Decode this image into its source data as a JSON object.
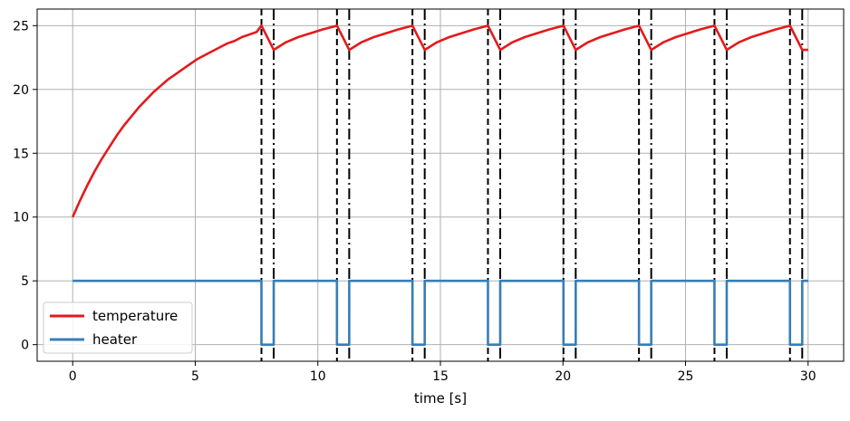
{
  "chart_data": {
    "type": "line",
    "title": "",
    "xlabel": "time [s]",
    "ylabel": "",
    "xlim": [
      -1.45,
      31.45
    ],
    "ylim": [
      -1.3,
      26.3
    ],
    "xticks": [
      0,
      5,
      10,
      15,
      20,
      25,
      30
    ],
    "yticks": [
      0,
      5,
      10,
      15,
      20,
      25
    ],
    "grid": true,
    "legend_position": "lower-left",
    "series": [
      {
        "name": "temperature",
        "color": "#e41a1c",
        "x": [
          0,
          0.3,
          0.6,
          0.9,
          1.2,
          1.5,
          1.8,
          2.1,
          2.4,
          2.7,
          3.0,
          3.3,
          3.6,
          3.9,
          4.2,
          4.5,
          4.8,
          5.1,
          5.4,
          5.7,
          6.0,
          6.3,
          6.6,
          6.9,
          7.2,
          7.5,
          7.7,
          8.2,
          8.7,
          9.2,
          9.7,
          10.2,
          10.78,
          11.28,
          11.78,
          12.28,
          12.78,
          13.28,
          13.86,
          14.36,
          14.86,
          15.36,
          15.86,
          16.36,
          16.94,
          17.44,
          17.94,
          18.44,
          18.94,
          19.44,
          20.02,
          20.52,
          21.02,
          21.52,
          22.02,
          22.52,
          23.1,
          23.6,
          24.1,
          24.6,
          25.1,
          25.6,
          26.18,
          26.68,
          27.18,
          27.68,
          28.18,
          28.68,
          29.26,
          29.76,
          30.0
        ],
        "y": [
          10.0,
          11.3,
          12.5,
          13.6,
          14.6,
          15.5,
          16.4,
          17.2,
          17.9,
          18.6,
          19.2,
          19.8,
          20.3,
          20.8,
          21.2,
          21.6,
          22.0,
          22.4,
          22.7,
          23.0,
          23.3,
          23.6,
          23.8,
          24.1,
          24.3,
          24.5,
          25.0,
          23.1,
          23.7,
          24.1,
          24.4,
          24.7,
          25.0,
          23.1,
          23.7,
          24.1,
          24.4,
          24.7,
          25.0,
          23.1,
          23.7,
          24.1,
          24.4,
          24.7,
          25.0,
          23.1,
          23.7,
          24.1,
          24.4,
          24.7,
          25.0,
          23.1,
          23.7,
          24.1,
          24.4,
          24.7,
          25.0,
          23.1,
          23.7,
          24.1,
          24.4,
          24.7,
          25.0,
          23.1,
          23.7,
          24.1,
          24.4,
          24.7,
          25.0,
          23.1,
          23.1
        ]
      },
      {
        "name": "heater",
        "color": "#377eb8",
        "x": [
          0,
          7.7,
          7.7,
          8.2,
          8.2,
          10.78,
          10.78,
          11.28,
          11.28,
          13.86,
          13.86,
          14.36,
          14.36,
          16.94,
          16.94,
          17.44,
          17.44,
          20.02,
          20.02,
          20.52,
          20.52,
          23.1,
          23.1,
          23.6,
          23.6,
          26.18,
          26.18,
          26.68,
          26.68,
          29.26,
          29.26,
          29.76,
          29.76,
          30.0
        ],
        "y": [
          5,
          5,
          0,
          0,
          5,
          5,
          0,
          0,
          5,
          5,
          0,
          0,
          5,
          5,
          0,
          0,
          5,
          5,
          0,
          0,
          5,
          5,
          0,
          0,
          5,
          5,
          0,
          0,
          5,
          5,
          0,
          0,
          5,
          5
        ]
      }
    ],
    "vlines_dashed": [
      7.7,
      10.78,
      13.86,
      16.94,
      20.02,
      23.1,
      26.18,
      29.26
    ],
    "vlines_dashdot": [
      8.2,
      11.28,
      14.36,
      17.44,
      20.52,
      23.6,
      26.68,
      29.76
    ],
    "vline_color": "#000000"
  }
}
